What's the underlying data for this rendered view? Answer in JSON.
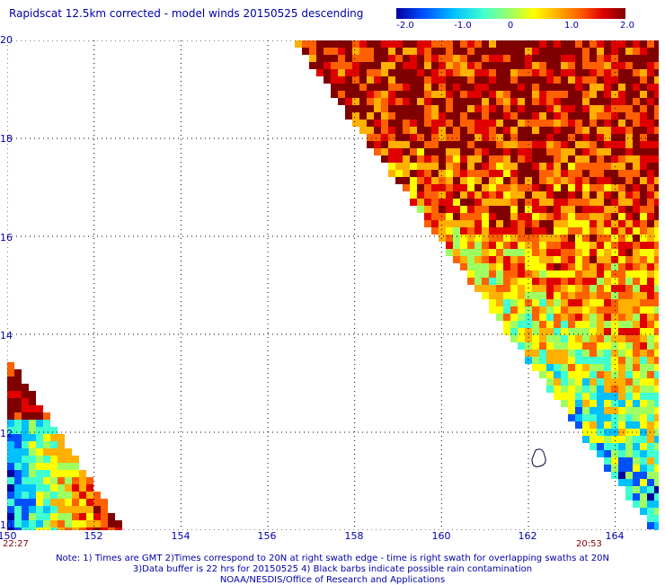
{
  "title": "Rapidscat 12.5km corrected - model winds 20150525 descending",
  "colorbar": {
    "tick_labels": [
      "-2.0",
      "-1.0",
      "0",
      "1.0",
      "2.0"
    ],
    "range": [
      -2.0,
      2.0
    ],
    "colors": [
      "#0000a0",
      "#0050ff",
      "#00c0ff",
      "#40ffd0",
      "#a0ff60",
      "#ffff00",
      "#ffb000",
      "#ff6000",
      "#e00000",
      "#800000"
    ]
  },
  "map": {
    "lon_range": [
      150,
      165
    ],
    "lat_range": [
      10,
      20
    ],
    "x_tick_labels": [
      "150",
      "152",
      "154",
      "156",
      "158",
      "160",
      "162",
      "164"
    ],
    "y_tick_labels": [
      "20",
      "18",
      "16",
      "14",
      "12",
      "10"
    ],
    "grid": "dotted",
    "swath_times": {
      "left": "22:27",
      "right": "20:53"
    }
  },
  "notes": {
    "line1": "Note: 1) Times are GMT 2)Times correspond to 20N at right swath edge - time is right swath for overlapping swaths at 20N",
    "line2": "3)Data buffer is 22 hrs for 20150525 4) Black barbs indicate possible rain contamination",
    "line3": "NOAA/NESDIS/Office of Research and Applications"
  }
}
